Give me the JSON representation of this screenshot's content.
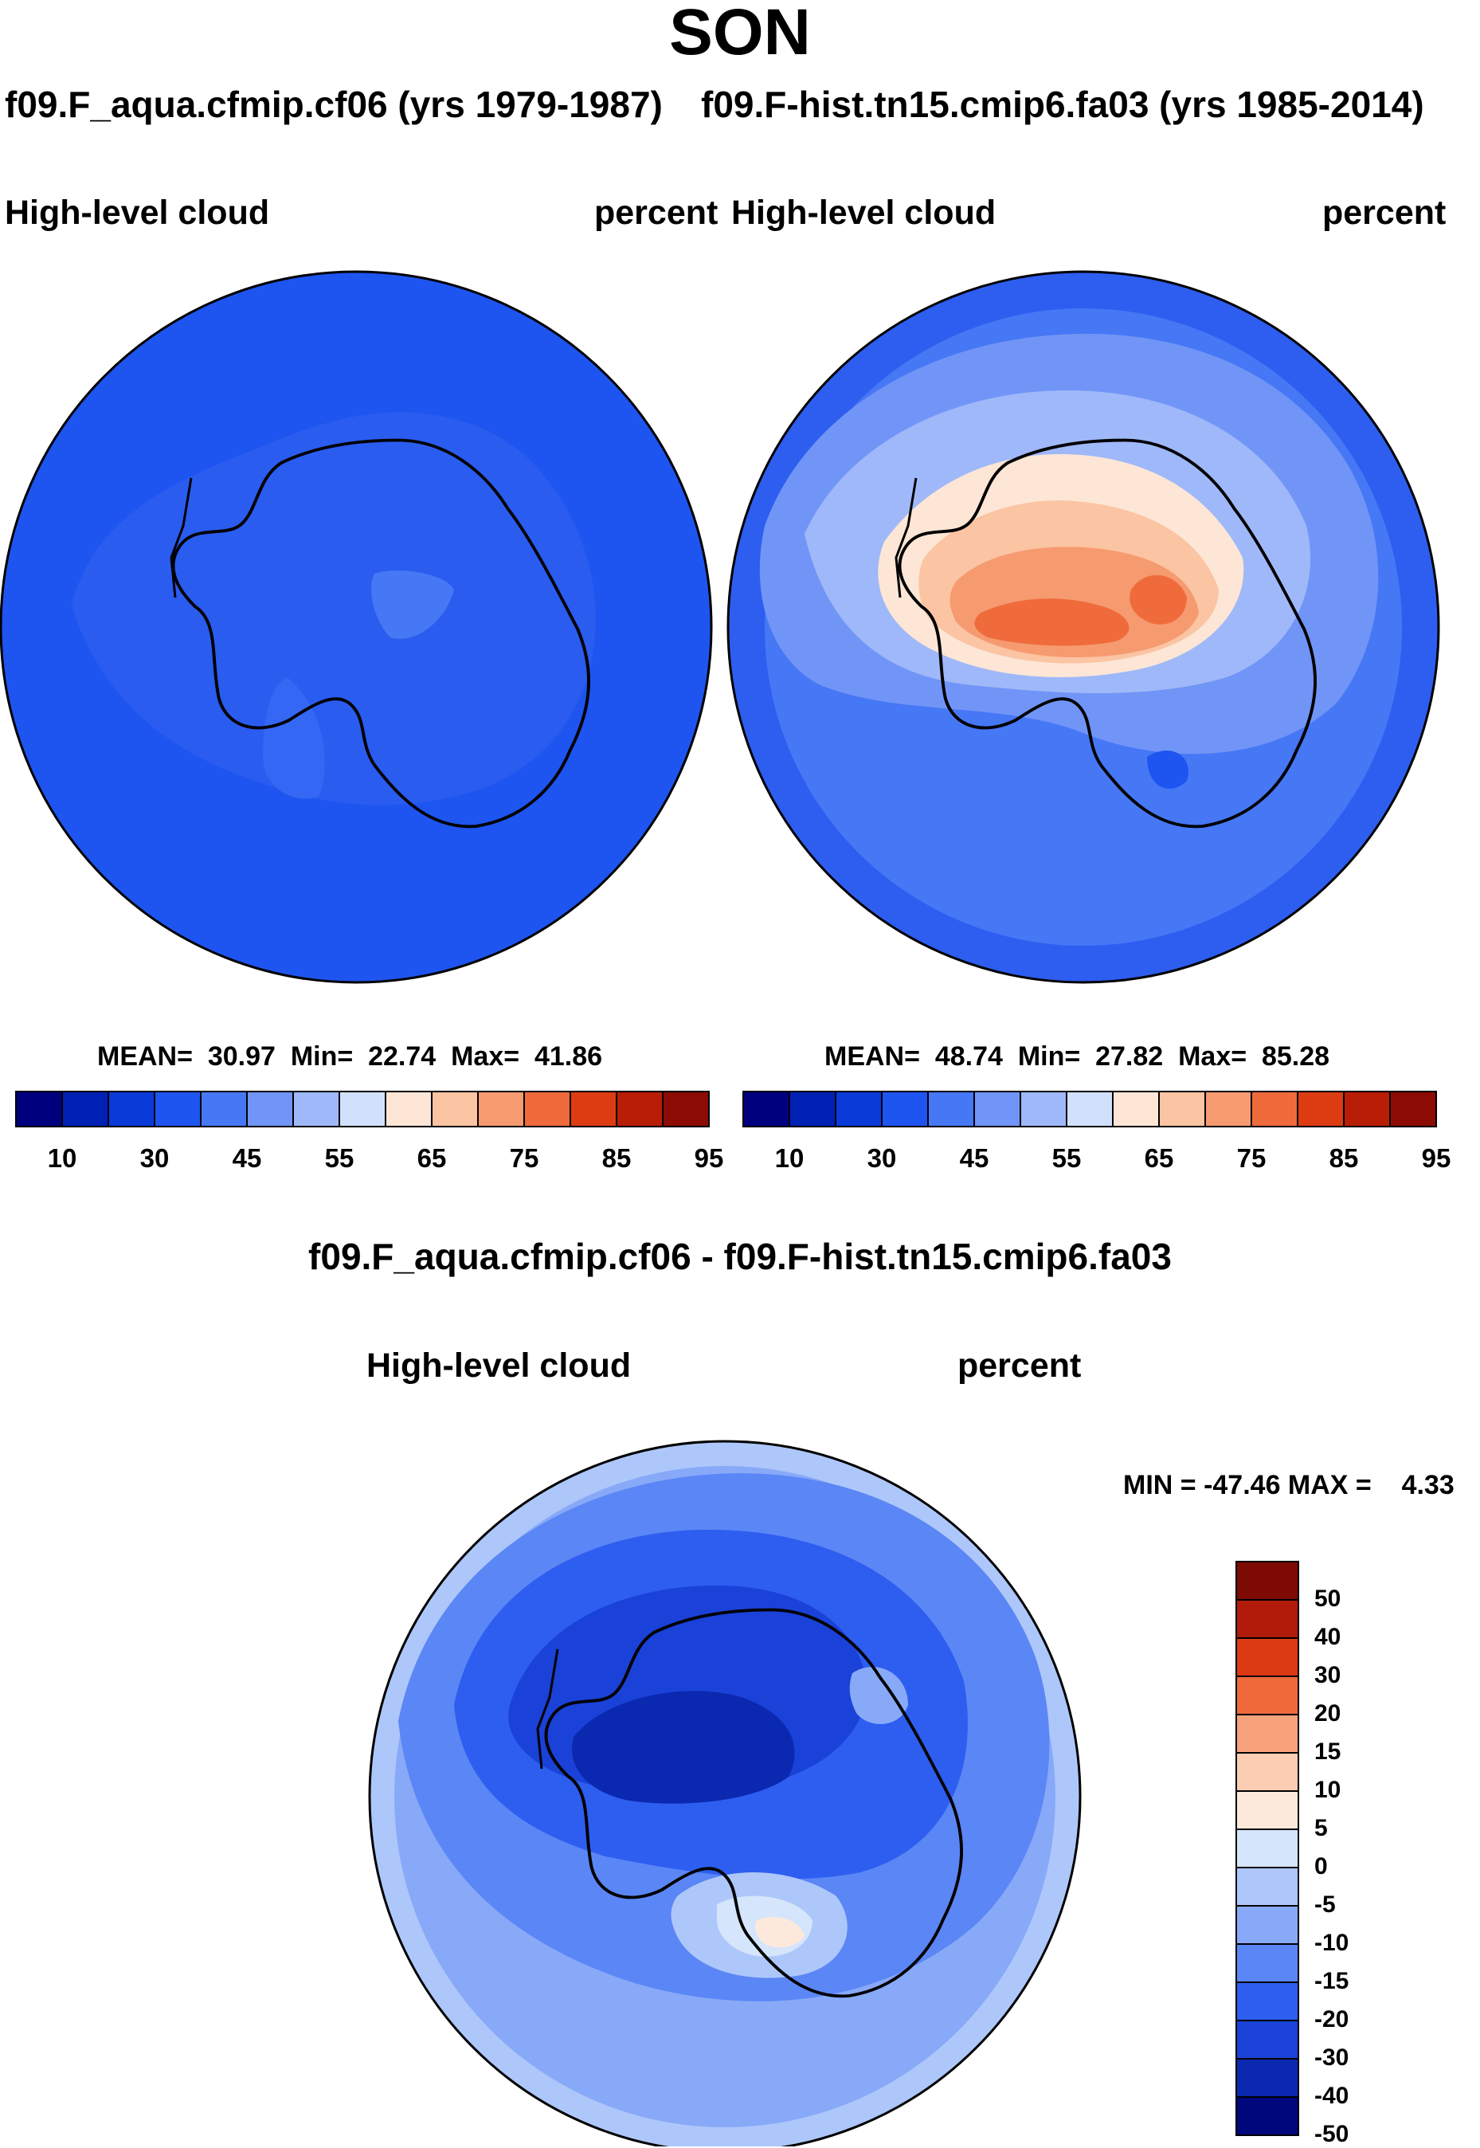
{
  "title": "SON",
  "panels": [
    {
      "case_label": "f09.F_aqua.cfmip.cf06 (yrs 1979-1987)",
      "variable": "High-level cloud",
      "units": "percent",
      "stats": {
        "mean": "30.97",
        "min": "22.74",
        "max": "41.86"
      },
      "stats_text": "MEAN=  30.97  Min=  22.74  Max=  41.86"
    },
    {
      "case_label": "f09.F-hist.tn15.cmip6.fa03 (yrs 1985-2014)",
      "variable": "High-level cloud",
      "units": "percent",
      "stats": {
        "mean": "48.74",
        "min": "27.82",
        "max": "85.28"
      },
      "stats_text": "MEAN=  48.74  Min=  27.82  Max=  85.28"
    }
  ],
  "colorbar": {
    "colors": [
      "#00007f",
      "#0021b3",
      "#0a3ad8",
      "#1e55f0",
      "#4677f5",
      "#7195f7",
      "#9fb8f9",
      "#d0e2fb",
      "#fde6d6",
      "#fbc4a3",
      "#f69a70",
      "#ef6b3c",
      "#dd3c12",
      "#b81e06",
      "#8c0b04"
    ],
    "tick_labels": [
      "10",
      "30",
      "45",
      "55",
      "65",
      "75",
      "85",
      "95"
    ]
  },
  "difference": {
    "title": "f09.F_aqua.cfmip.cf06 - f09.F-hist.tn15.cmip6.fa03",
    "variable": "High-level cloud",
    "units": "percent",
    "min": "-47.46",
    "max": "4.33",
    "minmax_text": "MIN = -47.46 MAX =    4.33",
    "colors_top_to_bottom": [
      "#7d0a03",
      "#b01c09",
      "#dc3a12",
      "#f06a3c",
      "#f8a27c",
      "#fbcdb2",
      "#fde9dc",
      "#d5e5fb",
      "#aec7fa",
      "#88a9f8",
      "#5b86f5",
      "#2d5ef0",
      "#1a42d8",
      "#0b28b0",
      "#00067c"
    ],
    "tick_labels_top_to_bottom": [
      "50",
      "40",
      "30",
      "20",
      "15",
      "10",
      "5",
      "0",
      "-5",
      "-10",
      "-15",
      "-20",
      "-30",
      "-40",
      "-50"
    ]
  }
}
